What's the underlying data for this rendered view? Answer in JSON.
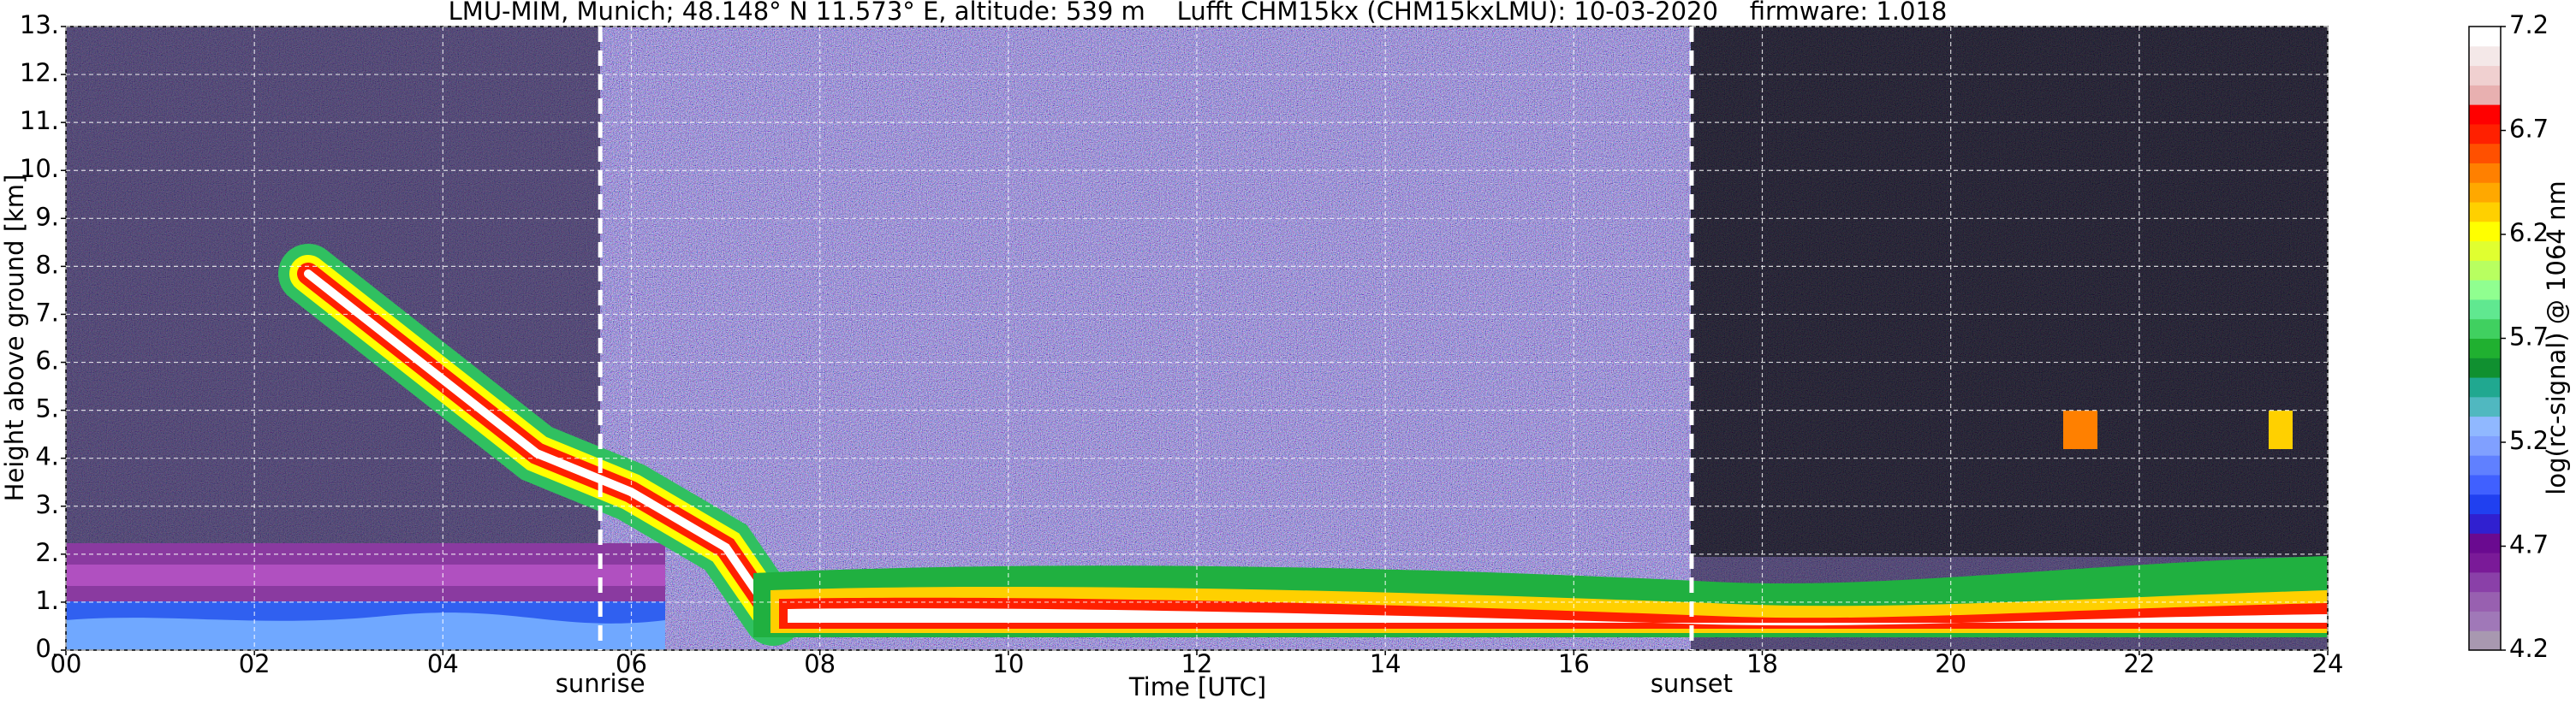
{
  "chart_data": {
    "type": "heatmap",
    "title": "LMU-MIM, Munich; 48.148° N 11.573° E, altitude: 539 m    Lufft CHM15kx (CHM15kxLMU): 10-03-2020    firmware: 1.018",
    "xlabel": "Time [UTC]",
    "ylabel": "Height above ground [km]",
    "xlim": [
      0,
      24
    ],
    "ylim": [
      0,
      13
    ],
    "xticks": [
      {
        "value": 0,
        "label": "00"
      },
      {
        "value": 2,
        "label": "02"
      },
      {
        "value": 4,
        "label": "04"
      },
      {
        "value": 6,
        "label": "06"
      },
      {
        "value": 8,
        "label": "08"
      },
      {
        "value": 10,
        "label": "10"
      },
      {
        "value": 12,
        "label": "12"
      },
      {
        "value": 14,
        "label": "14"
      },
      {
        "value": 16,
        "label": "16"
      },
      {
        "value": 18,
        "label": "18"
      },
      {
        "value": 20,
        "label": "20"
      },
      {
        "value": 22,
        "label": "22"
      },
      {
        "value": 24,
        "label": "24"
      }
    ],
    "yticks": [
      {
        "value": 0,
        "label": "0."
      },
      {
        "value": 1,
        "label": "1."
      },
      {
        "value": 2,
        "label": "2."
      },
      {
        "value": 3,
        "label": "3."
      },
      {
        "value": 4,
        "label": "4."
      },
      {
        "value": 5,
        "label": "5."
      },
      {
        "value": 6,
        "label": "6."
      },
      {
        "value": 7,
        "label": "7."
      },
      {
        "value": 8,
        "label": "8."
      },
      {
        "value": 9,
        "label": "9."
      },
      {
        "value": 10,
        "label": "10."
      },
      {
        "value": 11,
        "label": "11."
      },
      {
        "value": 12,
        "label": "12."
      },
      {
        "value": 13,
        "label": "13."
      }
    ],
    "grid": true,
    "annotations": [
      {
        "text": "sunrise",
        "x": 5.67
      },
      {
        "text": "sunset",
        "x": 17.25
      }
    ],
    "colorbar": {
      "label": "log(rc-signal) @ 1064 nm",
      "lim": [
        4.2,
        7.2
      ],
      "ticks": [
        4.2,
        4.7,
        5.2,
        5.7,
        6.2,
        6.7,
        7.2
      ],
      "colors": [
        "#a898b0",
        "#a078b8",
        "#9860b0",
        "#8a40a8",
        "#7a1a98",
        "#6a0a90",
        "#3020d0",
        "#2040f0",
        "#4060ff",
        "#6080ff",
        "#80a0ff",
        "#90b8ff",
        "#50b8c0",
        "#20a890",
        "#109030",
        "#20b030",
        "#40d060",
        "#60e890",
        "#90ff90",
        "#b8ff60",
        "#e0ff30",
        "#ffff00",
        "#ffd000",
        "#ffa800",
        "#ff8000",
        "#ff5000",
        "#ff2000",
        "#ff0000",
        "#e8b0b0",
        "#f0d0d0",
        "#f4e8e8",
        "#ffffff"
      ]
    }
  }
}
